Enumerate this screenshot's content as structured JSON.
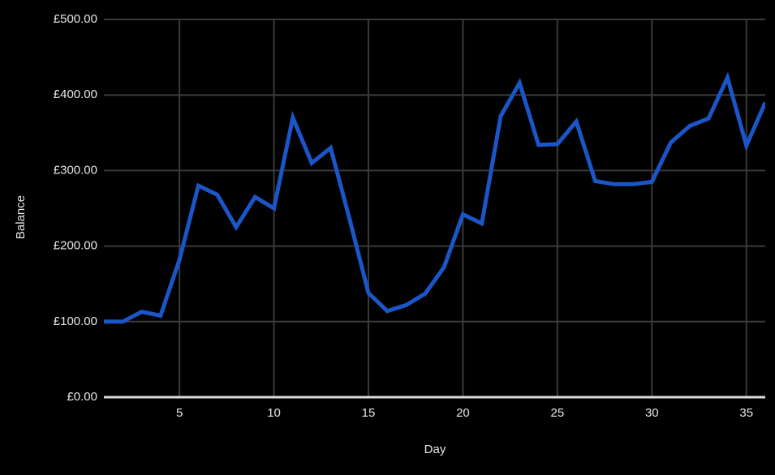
{
  "chart_data": {
    "type": "line",
    "x_label": "Day",
    "y_label": "Balance",
    "x": [
      1,
      2,
      3,
      4,
      5,
      6,
      7,
      8,
      9,
      10,
      11,
      12,
      13,
      14,
      15,
      16,
      17,
      18,
      19,
      20,
      21,
      22,
      23,
      24,
      25,
      26,
      27,
      28,
      29,
      30,
      31,
      32,
      33,
      34,
      35,
      36
    ],
    "series": [
      {
        "color": "#1a56c8",
        "values": [
          100,
          100,
          113,
          108,
          182,
          280,
          268,
          225,
          265,
          250,
          370,
          310,
          330,
          236,
          138,
          114,
          122,
          137,
          172,
          242,
          230,
          372,
          416,
          334,
          335,
          365,
          286,
          282,
          282,
          285,
          337,
          359,
          369,
          423,
          333,
          390
        ]
      }
    ],
    "xlim": [
      1,
      36
    ],
    "xticks": [
      5,
      10,
      15,
      20,
      25,
      30,
      35
    ],
    "ylim": [
      0,
      500
    ],
    "yticks": [
      {
        "value": 0,
        "label": "£0.00"
      },
      {
        "value": 100,
        "label": "£100.00"
      },
      {
        "value": 200,
        "label": "£200.00"
      },
      {
        "value": 300,
        "label": "£300.00"
      },
      {
        "value": 400,
        "label": "£400.00"
      },
      {
        "value": 500,
        "label": "£500.00"
      }
    ],
    "grid": true
  }
}
